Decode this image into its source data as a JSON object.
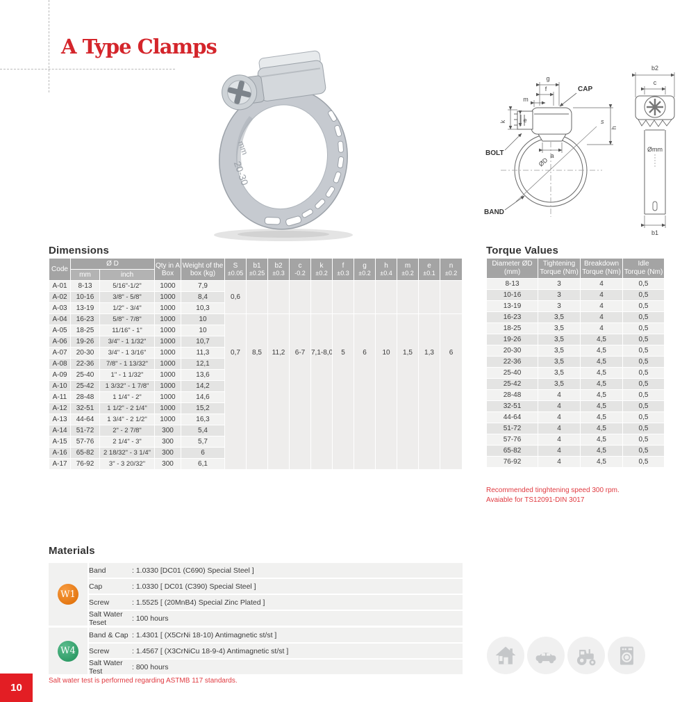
{
  "title": "A Type Clamps",
  "page_number": "10",
  "product": {
    "band_marking": "20-30",
    "band_marking_unit": "mm"
  },
  "diagram": {
    "front_labels": {
      "g": "g",
      "f": "f",
      "m": "m",
      "k": "k",
      "e": "e",
      "a": "a",
      "h": "h",
      "s": "s",
      "od": "ØD",
      "cap": "CAP",
      "bolt": "BOLT",
      "band": "BAND"
    },
    "side_labels": {
      "b2": "b2",
      "c": "c",
      "omm": "Ømm",
      "b1": "b1"
    }
  },
  "dimensions": {
    "heading": "Dimensions",
    "header": {
      "code": "Code",
      "od": "Ø D",
      "mm": "mm",
      "inch": "inch",
      "qty": "Qty in A Box",
      "weight": "Weight of the box (kg)",
      "tols": [
        {
          "name": "S",
          "tol": "±0.05"
        },
        {
          "name": "b1",
          "tol": "±0.25"
        },
        {
          "name": "b2",
          "tol": "±0.3"
        },
        {
          "name": "c",
          "tol": "-0.2"
        },
        {
          "name": "k",
          "tol": "±0.2"
        },
        {
          "name": "f",
          "tol": "±0.3"
        },
        {
          "name": "g",
          "tol": "±0.2"
        },
        {
          "name": "h",
          "tol": "±0.4"
        },
        {
          "name": "m",
          "tol": "±0.2"
        },
        {
          "name": "e",
          "tol": "±0.1"
        },
        {
          "name": "n",
          "tol": "±0.2"
        }
      ]
    },
    "rows": [
      [
        "A-01",
        "8-13",
        "5/16\"-1/2\"",
        "1000",
        "7,9"
      ],
      [
        "A-02",
        "10-16",
        "3/8\" - 5/8\"",
        "1000",
        "8,4"
      ],
      [
        "A-03",
        "13-19",
        "1/2\" - 3/4\"",
        "1000",
        "10,3"
      ],
      [
        "A-04",
        "16-23",
        "5/8\" - 7/8\"",
        "1000",
        "10"
      ],
      [
        "A-05",
        "18-25",
        "11/16\" - 1\"",
        "1000",
        "10"
      ],
      [
        "A-06",
        "19-26",
        "3/4\" - 1 1/32\"",
        "1000",
        "10,7"
      ],
      [
        "A-07",
        "20-30",
        "3/4\" - 1 3/16\"",
        "1000",
        "11,3"
      ],
      [
        "A-08",
        "22-36",
        "7/8\" - 1 13/32\"",
        "1000",
        "12,1"
      ],
      [
        "A-09",
        "25-40",
        "1\" - 1 1/32\"",
        "1000",
        "13,6"
      ],
      [
        "A-10",
        "25-42",
        "1 3/32\" - 1 7/8\"",
        "1000",
        "14,2"
      ],
      [
        "A-11",
        "28-48",
        "1 1/4\" - 2\"",
        "1000",
        "14,6"
      ],
      [
        "A-12",
        "32-51",
        "1 1/2\" - 2 1/4\"",
        "1000",
        "15,2"
      ],
      [
        "A-13",
        "44-64",
        "1 3/4\" - 2 1/2\"",
        "1000",
        "16,3"
      ],
      [
        "A-14",
        "51-72",
        "2\" - 2 7/8\"",
        "300",
        "5,4"
      ],
      [
        "A-15",
        "57-76",
        "2 1/4\" - 3\"",
        "300",
        "5,7"
      ],
      [
        "A-16",
        "65-82",
        "2 18/32\" - 3 1/4\"",
        "300",
        "6"
      ],
      [
        "A-17",
        "76-92",
        "3\" - 3 20/32\"",
        "300",
        "6,1"
      ]
    ],
    "s_upper": "0,6",
    "lower_values": [
      "0,7",
      "8,5",
      "11,2",
      "6-7",
      "7,1-8,0",
      "5",
      "6",
      "10",
      "1,5",
      "1,3",
      "6"
    ]
  },
  "torque": {
    "heading": "Torque Values",
    "headers": [
      {
        "l1": "Diameter ØD",
        "l2": "(mm)"
      },
      {
        "l1": "Tightening",
        "l2": "Torque (Nm)"
      },
      {
        "l1": "Breakdown",
        "l2": "Torque (Nm)"
      },
      {
        "l1": "Idle",
        "l2": "Torque (Nm)"
      }
    ],
    "rows": [
      [
        "8-13",
        "3",
        "4",
        "0,5"
      ],
      [
        "10-16",
        "3",
        "4",
        "0,5"
      ],
      [
        "13-19",
        "3",
        "4",
        "0,5"
      ],
      [
        "16-23",
        "3,5",
        "4",
        "0,5"
      ],
      [
        "18-25",
        "3,5",
        "4",
        "0,5"
      ],
      [
        "19-26",
        "3,5",
        "4,5",
        "0,5"
      ],
      [
        "20-30",
        "3,5",
        "4,5",
        "0,5"
      ],
      [
        "22-36",
        "3,5",
        "4,5",
        "0,5"
      ],
      [
        "25-40",
        "3,5",
        "4,5",
        "0,5"
      ],
      [
        "25-42",
        "3,5",
        "4,5",
        "0,5"
      ],
      [
        "28-48",
        "4",
        "4,5",
        "0,5"
      ],
      [
        "32-51",
        "4",
        "4,5",
        "0,5"
      ],
      [
        "44-64",
        "4",
        "4,5",
        "0,5"
      ],
      [
        "51-72",
        "4",
        "4,5",
        "0,5"
      ],
      [
        "57-76",
        "4",
        "4,5",
        "0,5"
      ],
      [
        "65-82",
        "4",
        "4,5",
        "0,5"
      ],
      [
        "76-92",
        "4",
        "4,5",
        "0,5"
      ]
    ],
    "notes": [
      "Recommended tinghtening speed 300 rpm.",
      "Avaiable for TS12091-DIN 3017"
    ]
  },
  "materials": {
    "heading": "Materials",
    "groups": [
      {
        "badge": "W1",
        "rows": [
          {
            "label": "Band",
            "value": ": 1.0330 [DC01 (C690) Special Steel ]"
          },
          {
            "label": "Cap",
            "value": ": 1.0330 [ DC01 (C390) Special Steel ]"
          },
          {
            "label": "Screw",
            "value": ": 1.5525 [ (20MnB4) Special Zinc Plated ]"
          },
          {
            "label": "Salt Water Teset",
            "value": ": 100 hours"
          }
        ]
      },
      {
        "badge": "W4",
        "rows": [
          {
            "label": "Band & Cap",
            "value": ": 1.4301 [ (X5CrNi 18-10) Antimagnetic st/st ]"
          },
          {
            "label": "Screw",
            "value": ": 1.4567 [ (X3CrNiCu 18-9-4) Antimagnetic st/st ]"
          },
          {
            "label": "Salt Water Test",
            "value": ": 800 hours"
          }
        ]
      }
    ],
    "note": "Salt water test is performed regarding ASTMB 117 standards."
  },
  "icons": [
    "home-icon",
    "car-icon",
    "tractor-icon",
    "washing-machine-icon"
  ],
  "colors": {
    "accent_red": "#d4252b",
    "page_square_red": "#e31e24",
    "table_header_gray": "#a4a4a4",
    "badge_w1_orange": "#e8731a",
    "badge_w4_green": "#2f9e68"
  }
}
